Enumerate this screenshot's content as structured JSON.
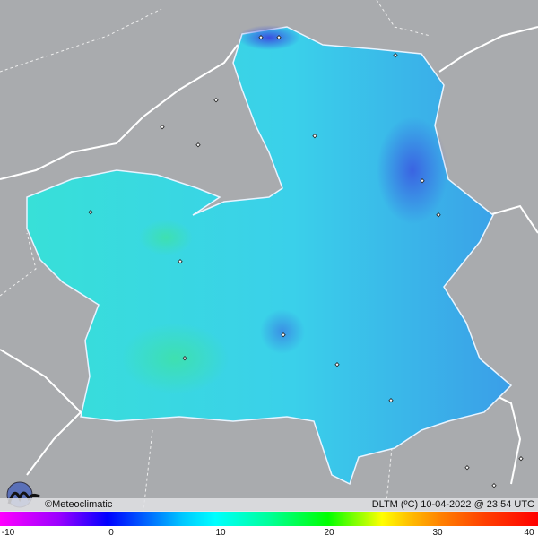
{
  "map": {
    "credit": "©Meteoclimatic",
    "variable_label": "DLTM (ºC)",
    "timestamp": "10-04-2022 @ 23:54 UTC",
    "background_color": "#a9abae",
    "region_colors": [
      "#38d8e8",
      "#3cb8ee",
      "#4a6ae6",
      "#3ae2c8"
    ],
    "icons": [
      "station-marker-icon",
      "meteoclimatic-logo"
    ]
  },
  "legend": {
    "unit": "ºC",
    "range": [
      -10,
      40
    ],
    "ticks": [
      "-10",
      "0",
      "10",
      "20",
      "30",
      "40"
    ],
    "colors": [
      "#ff00ff",
      "#0000ff",
      "#00ffff",
      "#00ff00",
      "#ffff00",
      "#ff8000",
      "#ff0000"
    ]
  }
}
